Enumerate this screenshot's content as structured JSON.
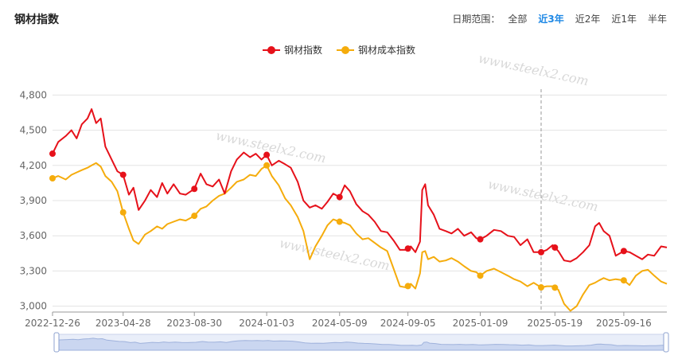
{
  "page_title": "钢材指数",
  "date_range": {
    "label": "日期范围：",
    "options": [
      "全部",
      "近3年",
      "近2年",
      "近1年",
      "半年"
    ],
    "selected": "近3年"
  },
  "watermark": "www.steelx2.com",
  "colors": {
    "steel": "#e6111a",
    "cost": "#f5ac0c",
    "grid": "#e3e3e3",
    "axis": "#666666"
  },
  "chart_data": {
    "type": "line",
    "title": "",
    "ylim": [
      2950,
      4850
    ],
    "yticks": [
      3000,
      3300,
      3600,
      3900,
      4200,
      4500,
      4800
    ],
    "ytick_labels": [
      "3,000",
      "3,300",
      "3,600",
      "3,900",
      "4,200",
      "4,500",
      "4,800"
    ],
    "x_domain": [
      "2022-12-26",
      "2025-11-30"
    ],
    "xtick_labels": [
      "2022-12-26",
      "2023-04-28",
      "2023-08-30",
      "2024-01-03",
      "2024-05-09",
      "2024-09-05",
      "2025-01-09",
      "2025-05-19",
      "2025-09-16"
    ],
    "grid": true,
    "legend": "top-center",
    "crosshair_date": "2025-04-25",
    "series": [
      {
        "name": "钢材指数",
        "color": "#e6111a",
        "points": [
          [
            "2022-12-26",
            4300
          ],
          [
            "2023-01-05",
            4400
          ],
          [
            "2023-01-18",
            4450
          ],
          [
            "2023-01-28",
            4500
          ],
          [
            "2023-02-06",
            4430
          ],
          [
            "2023-02-15",
            4550
          ],
          [
            "2023-02-25",
            4600
          ],
          [
            "2023-03-04",
            4680
          ],
          [
            "2023-03-12",
            4560
          ],
          [
            "2023-03-20",
            4600
          ],
          [
            "2023-03-28",
            4360
          ],
          [
            "2023-04-08",
            4250
          ],
          [
            "2023-04-18",
            4150
          ],
          [
            "2023-04-28",
            4120
          ],
          [
            "2023-05-08",
            3950
          ],
          [
            "2023-05-16",
            4010
          ],
          [
            "2023-05-25",
            3820
          ],
          [
            "2023-06-05",
            3900
          ],
          [
            "2023-06-15",
            3990
          ],
          [
            "2023-06-26",
            3930
          ],
          [
            "2023-07-05",
            4050
          ],
          [
            "2023-07-14",
            3960
          ],
          [
            "2023-07-25",
            4040
          ],
          [
            "2023-08-05",
            3960
          ],
          [
            "2023-08-15",
            3950
          ],
          [
            "2023-08-30",
            4000
          ],
          [
            "2023-09-10",
            4130
          ],
          [
            "2023-09-20",
            4040
          ],
          [
            "2023-10-01",
            4020
          ],
          [
            "2023-10-12",
            4080
          ],
          [
            "2023-10-22",
            3960
          ],
          [
            "2023-11-02",
            4150
          ],
          [
            "2023-11-12",
            4250
          ],
          [
            "2023-11-24",
            4310
          ],
          [
            "2023-12-05",
            4270
          ],
          [
            "2023-12-15",
            4300
          ],
          [
            "2023-12-25",
            4250
          ],
          [
            "2024-01-03",
            4290
          ],
          [
            "2024-01-12",
            4200
          ],
          [
            "2024-01-24",
            4240
          ],
          [
            "2024-02-04",
            4210
          ],
          [
            "2024-02-14",
            4180
          ],
          [
            "2024-02-26",
            4060
          ],
          [
            "2024-03-07",
            3900
          ],
          [
            "2024-03-18",
            3840
          ],
          [
            "2024-03-28",
            3860
          ],
          [
            "2024-04-08",
            3830
          ],
          [
            "2024-04-18",
            3890
          ],
          [
            "2024-04-28",
            3960
          ],
          [
            "2024-05-09",
            3930
          ],
          [
            "2024-05-18",
            4030
          ],
          [
            "2024-05-27",
            3980
          ],
          [
            "2024-06-07",
            3870
          ],
          [
            "2024-06-18",
            3810
          ],
          [
            "2024-06-28",
            3780
          ],
          [
            "2024-07-09",
            3720
          ],
          [
            "2024-07-20",
            3640
          ],
          [
            "2024-07-31",
            3630
          ],
          [
            "2024-08-11",
            3560
          ],
          [
            "2024-08-22",
            3480
          ],
          [
            "2024-09-02",
            3480
          ],
          [
            "2024-09-10",
            3510
          ],
          [
            "2024-09-18",
            3460
          ],
          [
            "2024-09-26",
            3550
          ],
          [
            "2024-09-30",
            3990
          ],
          [
            "2024-10-05",
            4040
          ],
          [
            "2024-10-10",
            3860
          ],
          [
            "2024-10-20",
            3780
          ],
          [
            "2024-10-30",
            3660
          ],
          [
            "2024-11-10",
            3640
          ],
          [
            "2024-11-20",
            3620
          ],
          [
            "2024-12-01",
            3660
          ],
          [
            "2024-12-12",
            3600
          ],
          [
            "2024-12-24",
            3630
          ],
          [
            "2025-01-02",
            3580
          ],
          [
            "2025-01-09",
            3570
          ],
          [
            "2025-01-20",
            3600
          ],
          [
            "2025-02-02",
            3650
          ],
          [
            "2025-02-14",
            3640
          ],
          [
            "2025-02-26",
            3600
          ],
          [
            "2025-03-09",
            3590
          ],
          [
            "2025-03-20",
            3520
          ],
          [
            "2025-04-01",
            3570
          ],
          [
            "2025-04-12",
            3460
          ],
          [
            "2025-04-25",
            3460
          ],
          [
            "2025-05-05",
            3480
          ],
          [
            "2025-05-15",
            3520
          ],
          [
            "2025-05-25",
            3470
          ],
          [
            "2025-06-04",
            3390
          ],
          [
            "2025-06-15",
            3380
          ],
          [
            "2025-06-26",
            3410
          ],
          [
            "2025-07-07",
            3460
          ],
          [
            "2025-07-18",
            3520
          ],
          [
            "2025-07-28",
            3680
          ],
          [
            "2025-08-04",
            3710
          ],
          [
            "2025-08-12",
            3640
          ],
          [
            "2025-08-22",
            3600
          ],
          [
            "2025-09-02",
            3430
          ],
          [
            "2025-09-16",
            3470
          ],
          [
            "2025-09-26",
            3460
          ],
          [
            "2025-10-07",
            3430
          ],
          [
            "2025-10-18",
            3400
          ],
          [
            "2025-10-28",
            3440
          ],
          [
            "2025-11-08",
            3430
          ],
          [
            "2025-11-20",
            3510
          ],
          [
            "2025-11-30",
            3500
          ]
        ],
        "markers": [
          "2022-12-26",
          "2023-04-28",
          "2023-08-30",
          "2024-01-03",
          "2024-05-09",
          "2024-09-05",
          "2025-01-09",
          "2025-04-25",
          "2025-05-19",
          "2025-09-16"
        ]
      },
      {
        "name": "钢材成本指数",
        "color": "#f5ac0c",
        "points": [
          [
            "2022-12-26",
            4090
          ],
          [
            "2023-01-05",
            4110
          ],
          [
            "2023-01-18",
            4080
          ],
          [
            "2023-01-28",
            4120
          ],
          [
            "2023-02-06",
            4140
          ],
          [
            "2023-02-15",
            4160
          ],
          [
            "2023-02-25",
            4180
          ],
          [
            "2023-03-04",
            4200
          ],
          [
            "2023-03-12",
            4220
          ],
          [
            "2023-03-20",
            4190
          ],
          [
            "2023-03-28",
            4110
          ],
          [
            "2023-04-08",
            4060
          ],
          [
            "2023-04-18",
            3980
          ],
          [
            "2023-04-28",
            3800
          ],
          [
            "2023-05-08",
            3660
          ],
          [
            "2023-05-16",
            3560
          ],
          [
            "2023-05-25",
            3530
          ],
          [
            "2023-06-05",
            3610
          ],
          [
            "2023-06-15",
            3640
          ],
          [
            "2023-06-26",
            3680
          ],
          [
            "2023-07-05",
            3660
          ],
          [
            "2023-07-14",
            3700
          ],
          [
            "2023-07-25",
            3720
          ],
          [
            "2023-08-05",
            3740
          ],
          [
            "2023-08-15",
            3730
          ],
          [
            "2023-08-30",
            3770
          ],
          [
            "2023-09-10",
            3830
          ],
          [
            "2023-09-20",
            3850
          ],
          [
            "2023-10-01",
            3900
          ],
          [
            "2023-10-12",
            3940
          ],
          [
            "2023-10-22",
            3960
          ],
          [
            "2023-11-02",
            4010
          ],
          [
            "2023-11-12",
            4060
          ],
          [
            "2023-11-24",
            4080
          ],
          [
            "2023-12-05",
            4120
          ],
          [
            "2023-12-15",
            4110
          ],
          [
            "2023-12-25",
            4170
          ],
          [
            "2024-01-03",
            4200
          ],
          [
            "2024-01-12",
            4110
          ],
          [
            "2024-01-24",
            4030
          ],
          [
            "2024-02-04",
            3920
          ],
          [
            "2024-02-14",
            3860
          ],
          [
            "2024-02-26",
            3760
          ],
          [
            "2024-03-07",
            3640
          ],
          [
            "2024-03-18",
            3400
          ],
          [
            "2024-03-28",
            3510
          ],
          [
            "2024-04-08",
            3600
          ],
          [
            "2024-04-18",
            3690
          ],
          [
            "2024-04-28",
            3740
          ],
          [
            "2024-05-09",
            3720
          ],
          [
            "2024-05-18",
            3710
          ],
          [
            "2024-05-27",
            3690
          ],
          [
            "2024-06-07",
            3620
          ],
          [
            "2024-06-18",
            3570
          ],
          [
            "2024-06-28",
            3580
          ],
          [
            "2024-07-09",
            3540
          ],
          [
            "2024-07-20",
            3500
          ],
          [
            "2024-07-31",
            3470
          ],
          [
            "2024-08-11",
            3320
          ],
          [
            "2024-08-22",
            3170
          ],
          [
            "2024-09-02",
            3160
          ],
          [
            "2024-09-10",
            3190
          ],
          [
            "2024-09-18",
            3150
          ],
          [
            "2024-09-26",
            3280
          ],
          [
            "2024-09-30",
            3460
          ],
          [
            "2024-10-05",
            3470
          ],
          [
            "2024-10-10",
            3400
          ],
          [
            "2024-10-20",
            3420
          ],
          [
            "2024-10-30",
            3380
          ],
          [
            "2024-11-10",
            3390
          ],
          [
            "2024-11-20",
            3410
          ],
          [
            "2024-12-01",
            3380
          ],
          [
            "2024-12-12",
            3340
          ],
          [
            "2024-12-24",
            3300
          ],
          [
            "2025-01-02",
            3290
          ],
          [
            "2025-01-09",
            3260
          ],
          [
            "2025-01-20",
            3300
          ],
          [
            "2025-02-02",
            3320
          ],
          [
            "2025-02-14",
            3290
          ],
          [
            "2025-02-26",
            3260
          ],
          [
            "2025-03-09",
            3230
          ],
          [
            "2025-03-20",
            3210
          ],
          [
            "2025-04-01",
            3170
          ],
          [
            "2025-04-12",
            3200
          ],
          [
            "2025-04-25",
            3160
          ],
          [
            "2025-05-05",
            3170
          ],
          [
            "2025-05-15",
            3170
          ],
          [
            "2025-05-25",
            3140
          ],
          [
            "2025-06-04",
            3020
          ],
          [
            "2025-06-15",
            2960
          ],
          [
            "2025-06-26",
            3000
          ],
          [
            "2025-07-07",
            3100
          ],
          [
            "2025-07-18",
            3180
          ],
          [
            "2025-07-28",
            3200
          ],
          [
            "2025-08-04",
            3220
          ],
          [
            "2025-08-12",
            3240
          ],
          [
            "2025-08-22",
            3220
          ],
          [
            "2025-09-02",
            3230
          ],
          [
            "2025-09-16",
            3220
          ],
          [
            "2025-09-26",
            3180
          ],
          [
            "2025-10-07",
            3260
          ],
          [
            "2025-10-18",
            3300
          ],
          [
            "2025-10-28",
            3310
          ],
          [
            "2025-11-08",
            3260
          ],
          [
            "2025-11-20",
            3210
          ],
          [
            "2025-11-30",
            3190
          ]
        ],
        "markers": [
          "2022-12-26",
          "2023-04-28",
          "2023-08-30",
          "2024-01-03",
          "2024-05-09",
          "2024-09-05",
          "2025-01-09",
          "2025-04-25",
          "2025-05-19",
          "2025-09-16"
        ]
      }
    ]
  }
}
